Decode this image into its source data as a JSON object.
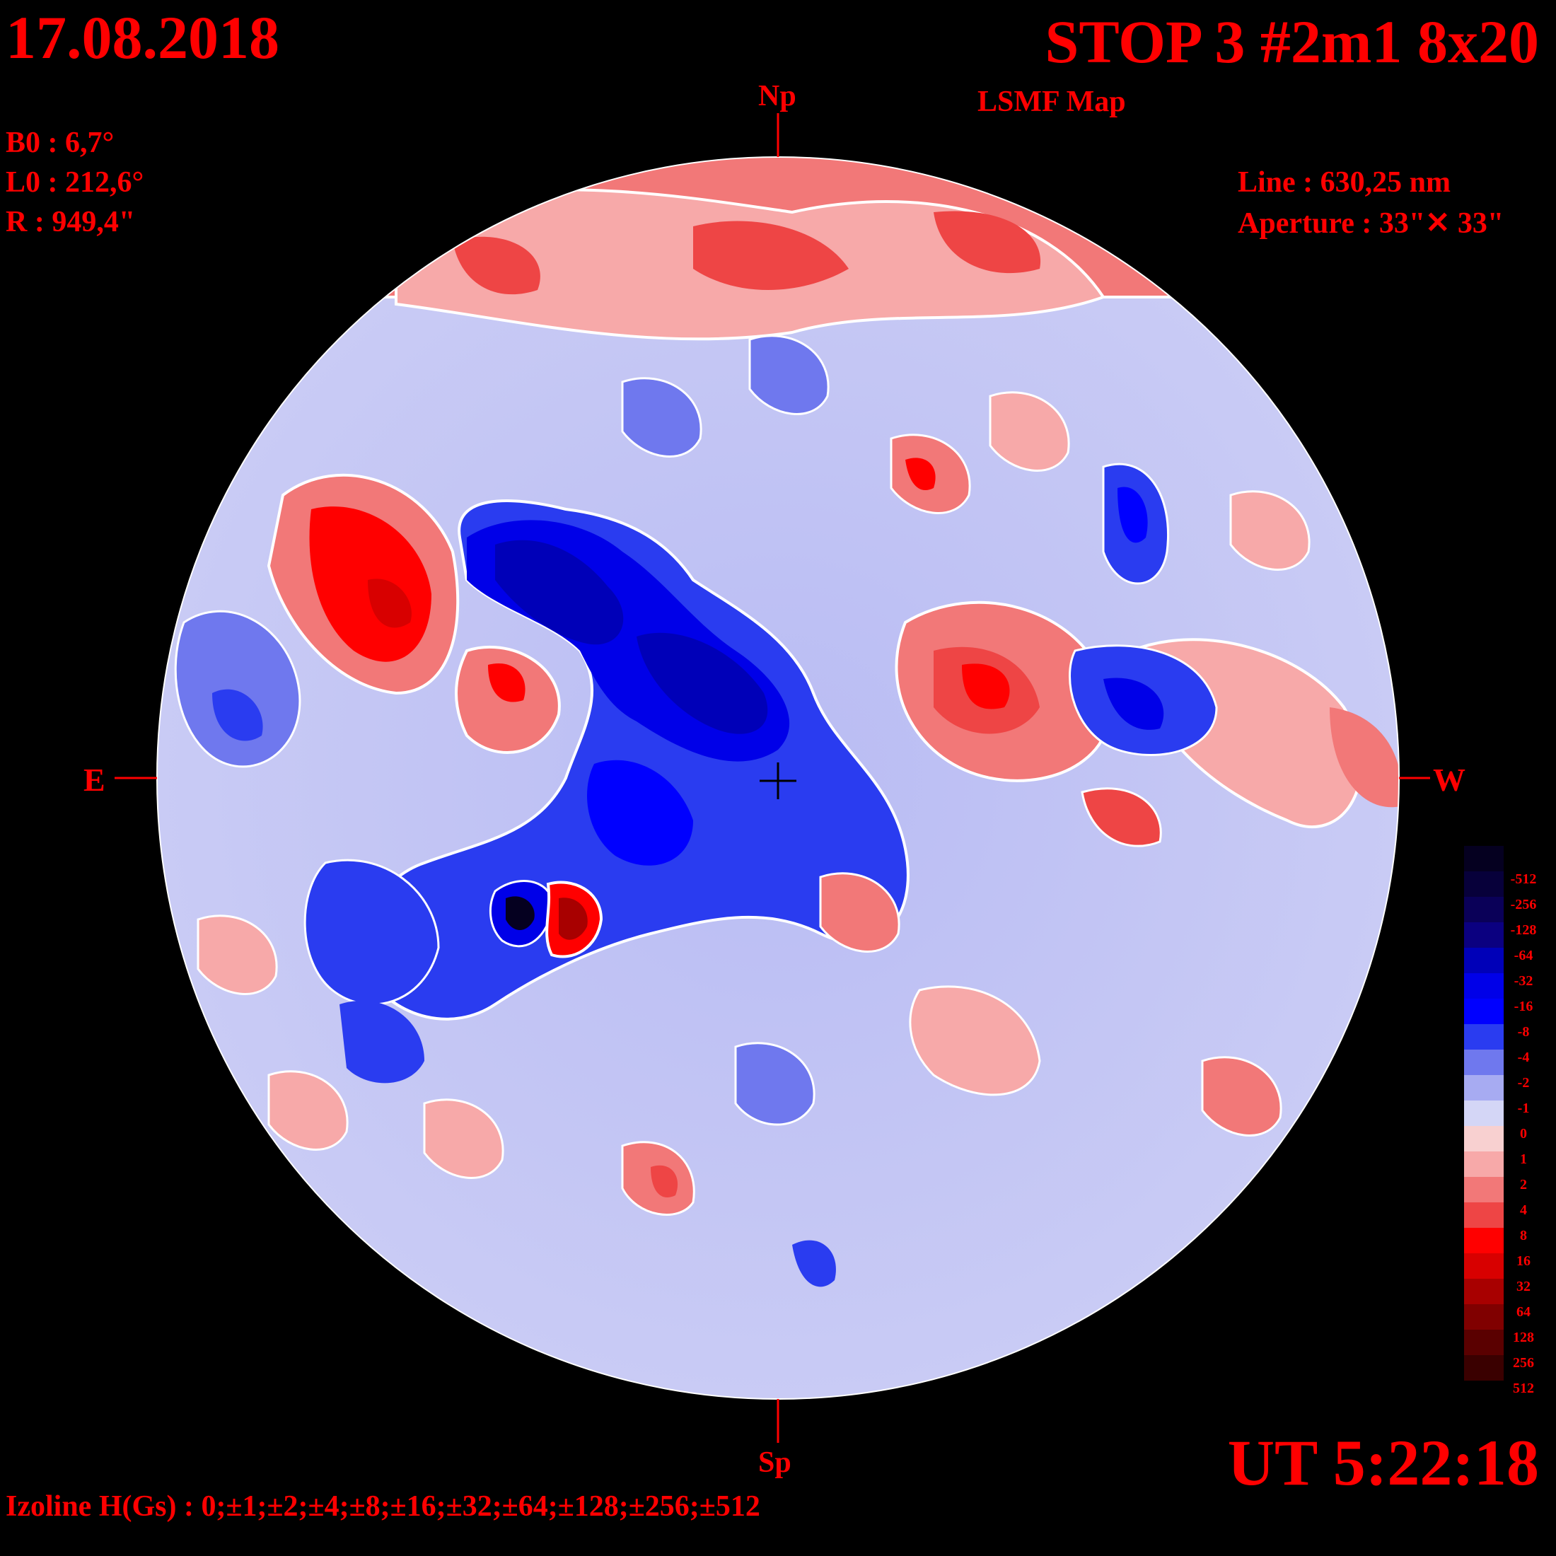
{
  "header": {
    "date": "17.08.2018",
    "title": "STOP 3 #2m1 8x20",
    "subtitle": "LSMF  Map"
  },
  "params": {
    "b0": "B0 : 6,7°",
    "l0": "L0 : 212,6°",
    "r": "R  : 949,4\""
  },
  "instrument": {
    "line": "Line :  630,25 nm",
    "aperture": "Aperture : 33\"✕ 33\""
  },
  "compass": {
    "north": "Np",
    "south": "Sp",
    "east": "E",
    "west": "W"
  },
  "time": "UT 5:22:18",
  "izoline": "Izoline H(Gs) : 0;±1;±2;±4;±8;±16;±32;±64;±128;±256;±512",
  "colorbar": {
    "labels": [
      "-512",
      "-256",
      "-128",
      "-64",
      "-32",
      "-16",
      "-8",
      "-4",
      "-2",
      "-1",
      "0",
      "1",
      "2",
      "4",
      "8",
      "16",
      "32",
      "64",
      "128",
      "256",
      "512"
    ],
    "colors": [
      "#050020",
      "#07003a",
      "#0a0058",
      "#0b0080",
      "#0000b8",
      "#0000e8",
      "#0000ff",
      "#2a3cf0",
      "#6f78ee",
      "#a7abf2",
      "#d4d6f6",
      "#f8d0d0",
      "#f7a9a9",
      "#f27878",
      "#ee4545",
      "#ff0000",
      "#d80000",
      "#a80000",
      "#800000",
      "#5a0000",
      "#3a0000"
    ]
  },
  "map": {
    "positive_color": "#ff0000",
    "negative_color": "#0000ff",
    "zero_color": "#ffffff"
  }
}
